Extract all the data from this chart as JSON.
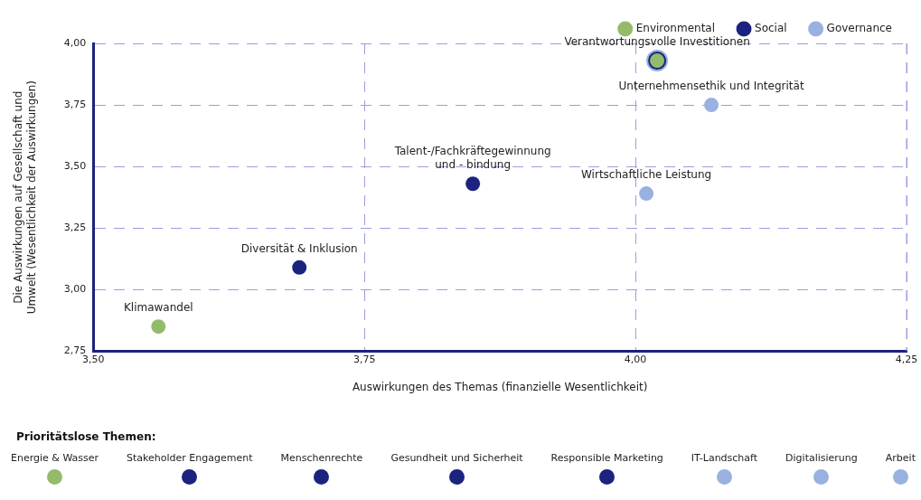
{
  "chart_data": [
    {
      "type": "scatter",
      "xlabel": "Auswirkungen des Themas (finanzielle Wesentlichkeit)",
      "ylabel": "Die Auswirkungen auf Gesellschaft und Umwelt (Wesentlichkeit der Auswirkungen)",
      "series": [
        {
          "name": "Environmental",
          "color": "#94bb6a",
          "x": [
            3.56,
            4.02
          ],
          "values": [
            2.85,
            3.93
          ]
        },
        {
          "name": "Social",
          "color": "#1b237f",
          "x": [
            3.69,
            3.85,
            4.02
          ],
          "values": [
            3.09,
            3.43,
            3.93
          ]
        },
        {
          "name": "Governance",
          "color": "#98b1e0",
          "x": [
            4.02,
            4.07,
            4.01
          ],
          "values": [
            3.93,
            3.75,
            3.39
          ]
        }
      ],
      "xlim": [
        3.5,
        4.25
      ],
      "xticks": [
        {
          "value": 3.5,
          "label": "3,50"
        },
        {
          "value": 3.75,
          "label": "3,75"
        },
        {
          "value": 4,
          "label": "4,00"
        },
        {
          "value": 4.25,
          "label": "4,25"
        }
      ],
      "ylim": [
        2.75,
        4
      ],
      "yticks": [
        {
          "value": 2.75,
          "label": "2,75"
        },
        {
          "value": 3,
          "label": "3,00"
        },
        {
          "value": 3.25,
          "label": "3,25"
        },
        {
          "value": 3.5,
          "label": "3,50"
        },
        {
          "value": 3.75,
          "label": "3,75"
        },
        {
          "value": 4,
          "label": "4,00"
        }
      ],
      "grid": true,
      "legend": "top right",
      "marker": "circle",
      "annotations": [
        {
          "text": "Klimawandel",
          "x": 3.56,
          "y": 2.85
        },
        {
          "text": "Diversität & Inklusion",
          "x": 3.69,
          "y": 3.09
        },
        {
          "text": "Talent-/Fachkräftegewinnung\nund - bindung",
          "x": 3.85,
          "y": 3.43
        },
        {
          "text": "Verantwortungsvolle Investitionen",
          "x": 4.02,
          "y": 3.93
        },
        {
          "text": "Unternehmensethik und Integrität",
          "x": 4.07,
          "y": 3.75
        },
        {
          "text": "Wirtschaftliche Leistung",
          "x": 4.01,
          "y": 3.39
        }
      ]
    },
    {
      "type": "other",
      "title": "Prioritätslose Themen:",
      "categories": [
        "Energie & Wasser",
        "Stakeholder Engagement",
        "Menschenrechte",
        "Gesundheit und Sicherheit",
        "Responsible Marketing",
        "IT-Landschaft",
        "Digitalisierung",
        "Arbeit"
      ],
      "colors": [
        "#94bb6a",
        "#1b237f",
        "#1b237f",
        "#1b237f",
        "#1b237f",
        "#98b1e0",
        "#98b1e0",
        "#98b1e0"
      ]
    }
  ]
}
